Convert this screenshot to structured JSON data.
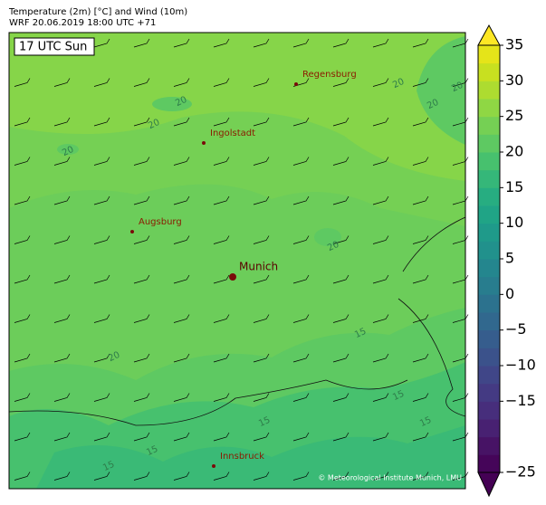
{
  "header": {
    "line1": "Temperature (2m) [°C] and Wind (10m)",
    "line2": "WRF 20.06.2019 18:00 UTC +71"
  },
  "map": {
    "time_label": "17 UTC Sun",
    "cities": [
      "Regensburg",
      "Ingolstadt",
      "Augsburg",
      "Munich",
      "Innsbruck"
    ],
    "contour_labels": [
      20,
      20,
      20,
      20,
      20,
      20,
      20,
      20,
      15,
      15,
      15,
      15,
      15,
      15
    ],
    "credit": "© Meteorological Institute Munich, LMU"
  },
  "colorbar": {
    "lim": [
      -25,
      35
    ],
    "ticks": [
      {
        "value": -25,
        "label": "−25"
      },
      {
        "value": -15,
        "label": "−15"
      },
      {
        "value": -10,
        "label": "−10"
      },
      {
        "value": -5,
        "label": "−5"
      },
      0,
      5,
      10,
      15,
      20,
      25,
      30,
      35
    ],
    "colors": [
      "#450559",
      "#471365",
      "#482172",
      "#472e7c",
      "#443a83",
      "#404688",
      "#3b528b",
      "#365d8d",
      "#31688e",
      "#2c728e",
      "#287d8e",
      "#24868e",
      "#21918c",
      "#1f9a8a",
      "#20a486",
      "#27ad81",
      "#35b779",
      "#47c16e",
      "#5ec962",
      "#75d054",
      "#8fd744",
      "#addc30",
      "#c8e020",
      "#e5e419"
    ],
    "over_color": "#fde725",
    "under_color": "#440154"
  }
}
